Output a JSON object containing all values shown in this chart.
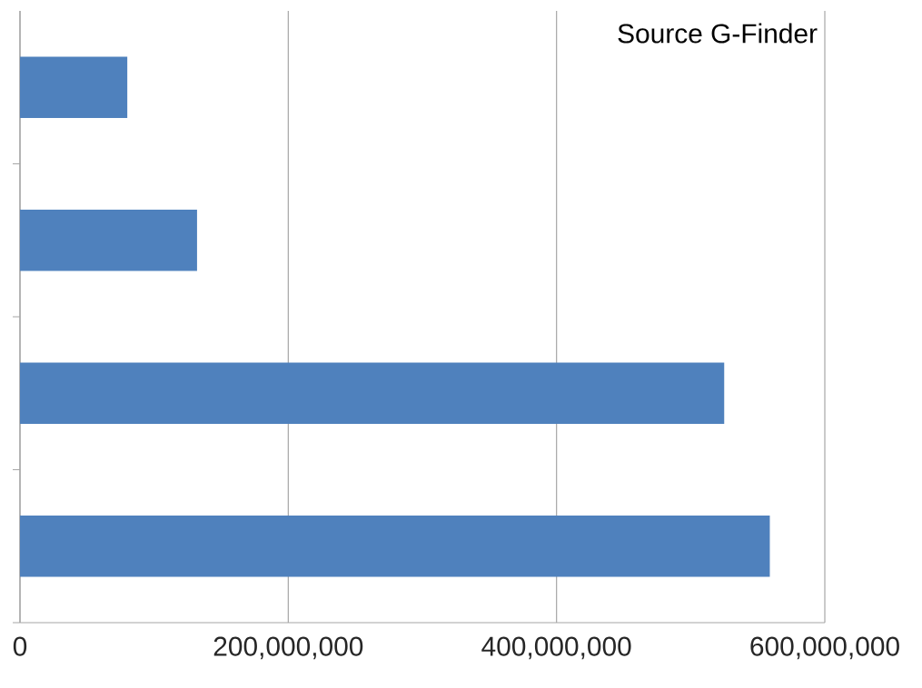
{
  "chart_data": {
    "type": "bar",
    "orientation": "horizontal",
    "categories": [
      null,
      null,
      null,
      null
    ],
    "values": [
      80000000,
      132000000,
      525000000,
      559000000
    ],
    "color": "#4f81bd",
    "xlim": [
      0,
      600000000
    ],
    "xticks": [
      0,
      {
        "value": 200000000,
        "label": "200,000,000"
      },
      {
        "value": 400000000,
        "label": "400,000,000"
      },
      {
        "value": 600000000,
        "label": "600,000,000"
      }
    ],
    "grid": "x",
    "annotations": [
      "Source G-Finder"
    ]
  }
}
